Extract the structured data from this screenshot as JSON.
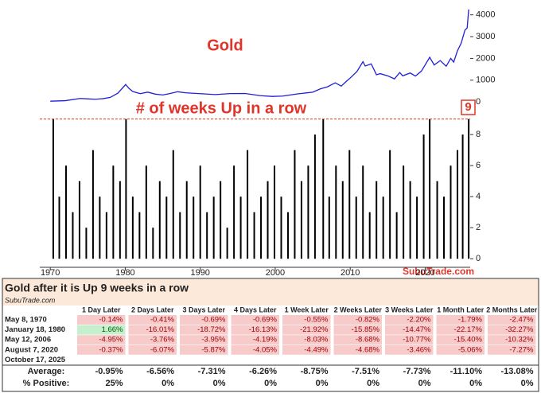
{
  "chart_data": [
    {
      "type": "line",
      "title": "Gold",
      "color": "#1f1fd6",
      "x": [
        1970,
        1972,
        1974,
        1975,
        1976,
        1977,
        1978,
        1979,
        1980.05,
        1980.5,
        1981,
        1982,
        1983,
        1984,
        1985,
        1986,
        1987,
        1988,
        1990,
        1992,
        1994,
        1996,
        1998,
        1999.6,
        2001,
        2002,
        2003,
        2004,
        2005,
        2006,
        2007,
        2008,
        2008.8,
        2009.5,
        2010,
        2010.9,
        2011.7,
        2012,
        2012.8,
        2013.5,
        2014,
        2015,
        2015.9,
        2016.6,
        2017,
        2018,
        2018.7,
        2019.5,
        2020.6,
        2021.2,
        2022,
        2022.8,
        2023.4,
        2023.8,
        2024.3,
        2024.8,
        2025.3,
        2025.6,
        2025.8
      ],
      "values": [
        36,
        58,
        160,
        140,
        125,
        150,
        210,
        400,
        800,
        620,
        480,
        380,
        450,
        360,
        320,
        390,
        470,
        420,
        380,
        340,
        385,
        390,
        290,
        255,
        270,
        320,
        370,
        410,
        450,
        600,
        700,
        880,
        730,
        950,
        1100,
        1400,
        1850,
        1650,
        1750,
        1250,
        1300,
        1200,
        1060,
        1350,
        1200,
        1330,
        1190,
        1420,
        2050,
        1700,
        1900,
        1640,
        2000,
        1830,
        2350,
        2700,
        3300,
        3400,
        4250
      ],
      "xlim": [
        1968.6,
        2026
      ],
      "ylim": [
        -250,
        4500
      ],
      "yticks": [
        0,
        1000,
        2000,
        3000,
        4000
      ]
    },
    {
      "type": "bar",
      "title": "# of weeks Up in a row",
      "color": "#000000",
      "threshold": 9,
      "threshold_color": "#e0352b",
      "x": [
        1970.4,
        1971.2,
        1972.1,
        1973.0,
        1973.9,
        1974.8,
        1975.7,
        1976.6,
        1977.5,
        1978.4,
        1979.3,
        1980.1,
        1981.0,
        1981.9,
        1982.8,
        1983.7,
        1984.6,
        1985.5,
        1986.4,
        1987.3,
        1988.2,
        1989.1,
        1990.0,
        1990.9,
        1991.8,
        1992.7,
        1993.6,
        1994.5,
        1995.4,
        1996.3,
        1997.2,
        1998.1,
        1999.0,
        1999.9,
        2000.8,
        2001.7,
        2002.6,
        2003.5,
        2004.4,
        2005.3,
        2006.4,
        2007.2,
        2008.1,
        2009.0,
        2009.9,
        2010.8,
        2011.7,
        2012.6,
        2013.5,
        2014.4,
        2015.3,
        2016.2,
        2017.1,
        2018.0,
        2018.9,
        2019.8,
        2020.6,
        2021.6,
        2022.5,
        2023.4,
        2024.3,
        2025.0,
        2025.8
      ],
      "values": [
        9,
        4,
        6,
        3,
        5,
        2,
        7,
        4,
        3,
        6,
        5,
        9,
        4,
        3,
        6,
        2,
        5,
        4,
        7,
        3,
        5,
        4,
        6,
        3,
        4,
        5,
        2,
        6,
        4,
        7,
        3,
        4,
        5,
        6,
        4,
        3,
        7,
        5,
        6,
        8,
        9,
        4,
        6,
        5,
        7,
        4,
        6,
        3,
        5,
        4,
        7,
        3,
        6,
        5,
        4,
        8,
        9,
        5,
        4,
        6,
        7,
        8,
        9
      ],
      "xlim": [
        1968.6,
        2026
      ],
      "xticks": [
        1970,
        1980,
        1990,
        2000,
        2010,
        2020
      ],
      "ylim": [
        -0.5,
        9.7
      ],
      "yticks": [
        0,
        2,
        4,
        6,
        8
      ],
      "source": "SubuTrade.com"
    }
  ],
  "table": {
    "title": "Gold after it is Up 9 weeks in a row",
    "source": "SubuTrade.com",
    "columns": [
      "1 Day Later",
      "2 Days Later",
      "3 Days Later",
      "4 Days Later",
      "1 Week Later",
      "2 Weeks Later",
      "3 Weeks Later",
      "1 Month Later",
      "2 Months Later"
    ],
    "rows": [
      {
        "label": "May 8, 1970",
        "values": [
          "-0.14%",
          "-0.41%",
          "-0.69%",
          "-0.69%",
          "-0.55%",
          "-0.82%",
          "-2.20%",
          "-1.79%",
          "-2.47%"
        ]
      },
      {
        "label": "January 18, 1980",
        "values": [
          "1.66%",
          "-16.01%",
          "-18.72%",
          "-16.13%",
          "-21.92%",
          "-15.85%",
          "-14.47%",
          "-22.17%",
          "-32.27%"
        ]
      },
      {
        "label": "May 12, 2006",
        "values": [
          "-4.95%",
          "-3.76%",
          "-3.95%",
          "-4.19%",
          "-8.03%",
          "-8.68%",
          "-10.77%",
          "-15.40%",
          "-10.32%"
        ]
      },
      {
        "label": "August 7, 2020",
        "values": [
          "-0.37%",
          "-6.07%",
          "-5.87%",
          "-4.05%",
          "-4.49%",
          "-4.68%",
          "-3.46%",
          "-5.06%",
          "-7.27%"
        ]
      },
      {
        "label": "October 17, 2025"
      }
    ],
    "summary": [
      {
        "label": "Average:",
        "values": [
          "-0.95%",
          "-6.56%",
          "-7.31%",
          "-6.26%",
          "-8.75%",
          "-7.51%",
          "-7.73%",
          "-11.10%",
          "-13.08%"
        ]
      },
      {
        "label": "% Positive:",
        "values": [
          "25%",
          "0%",
          "0%",
          "0%",
          "0%",
          "0%",
          "0%",
          "0%",
          "0%"
        ]
      }
    ]
  }
}
